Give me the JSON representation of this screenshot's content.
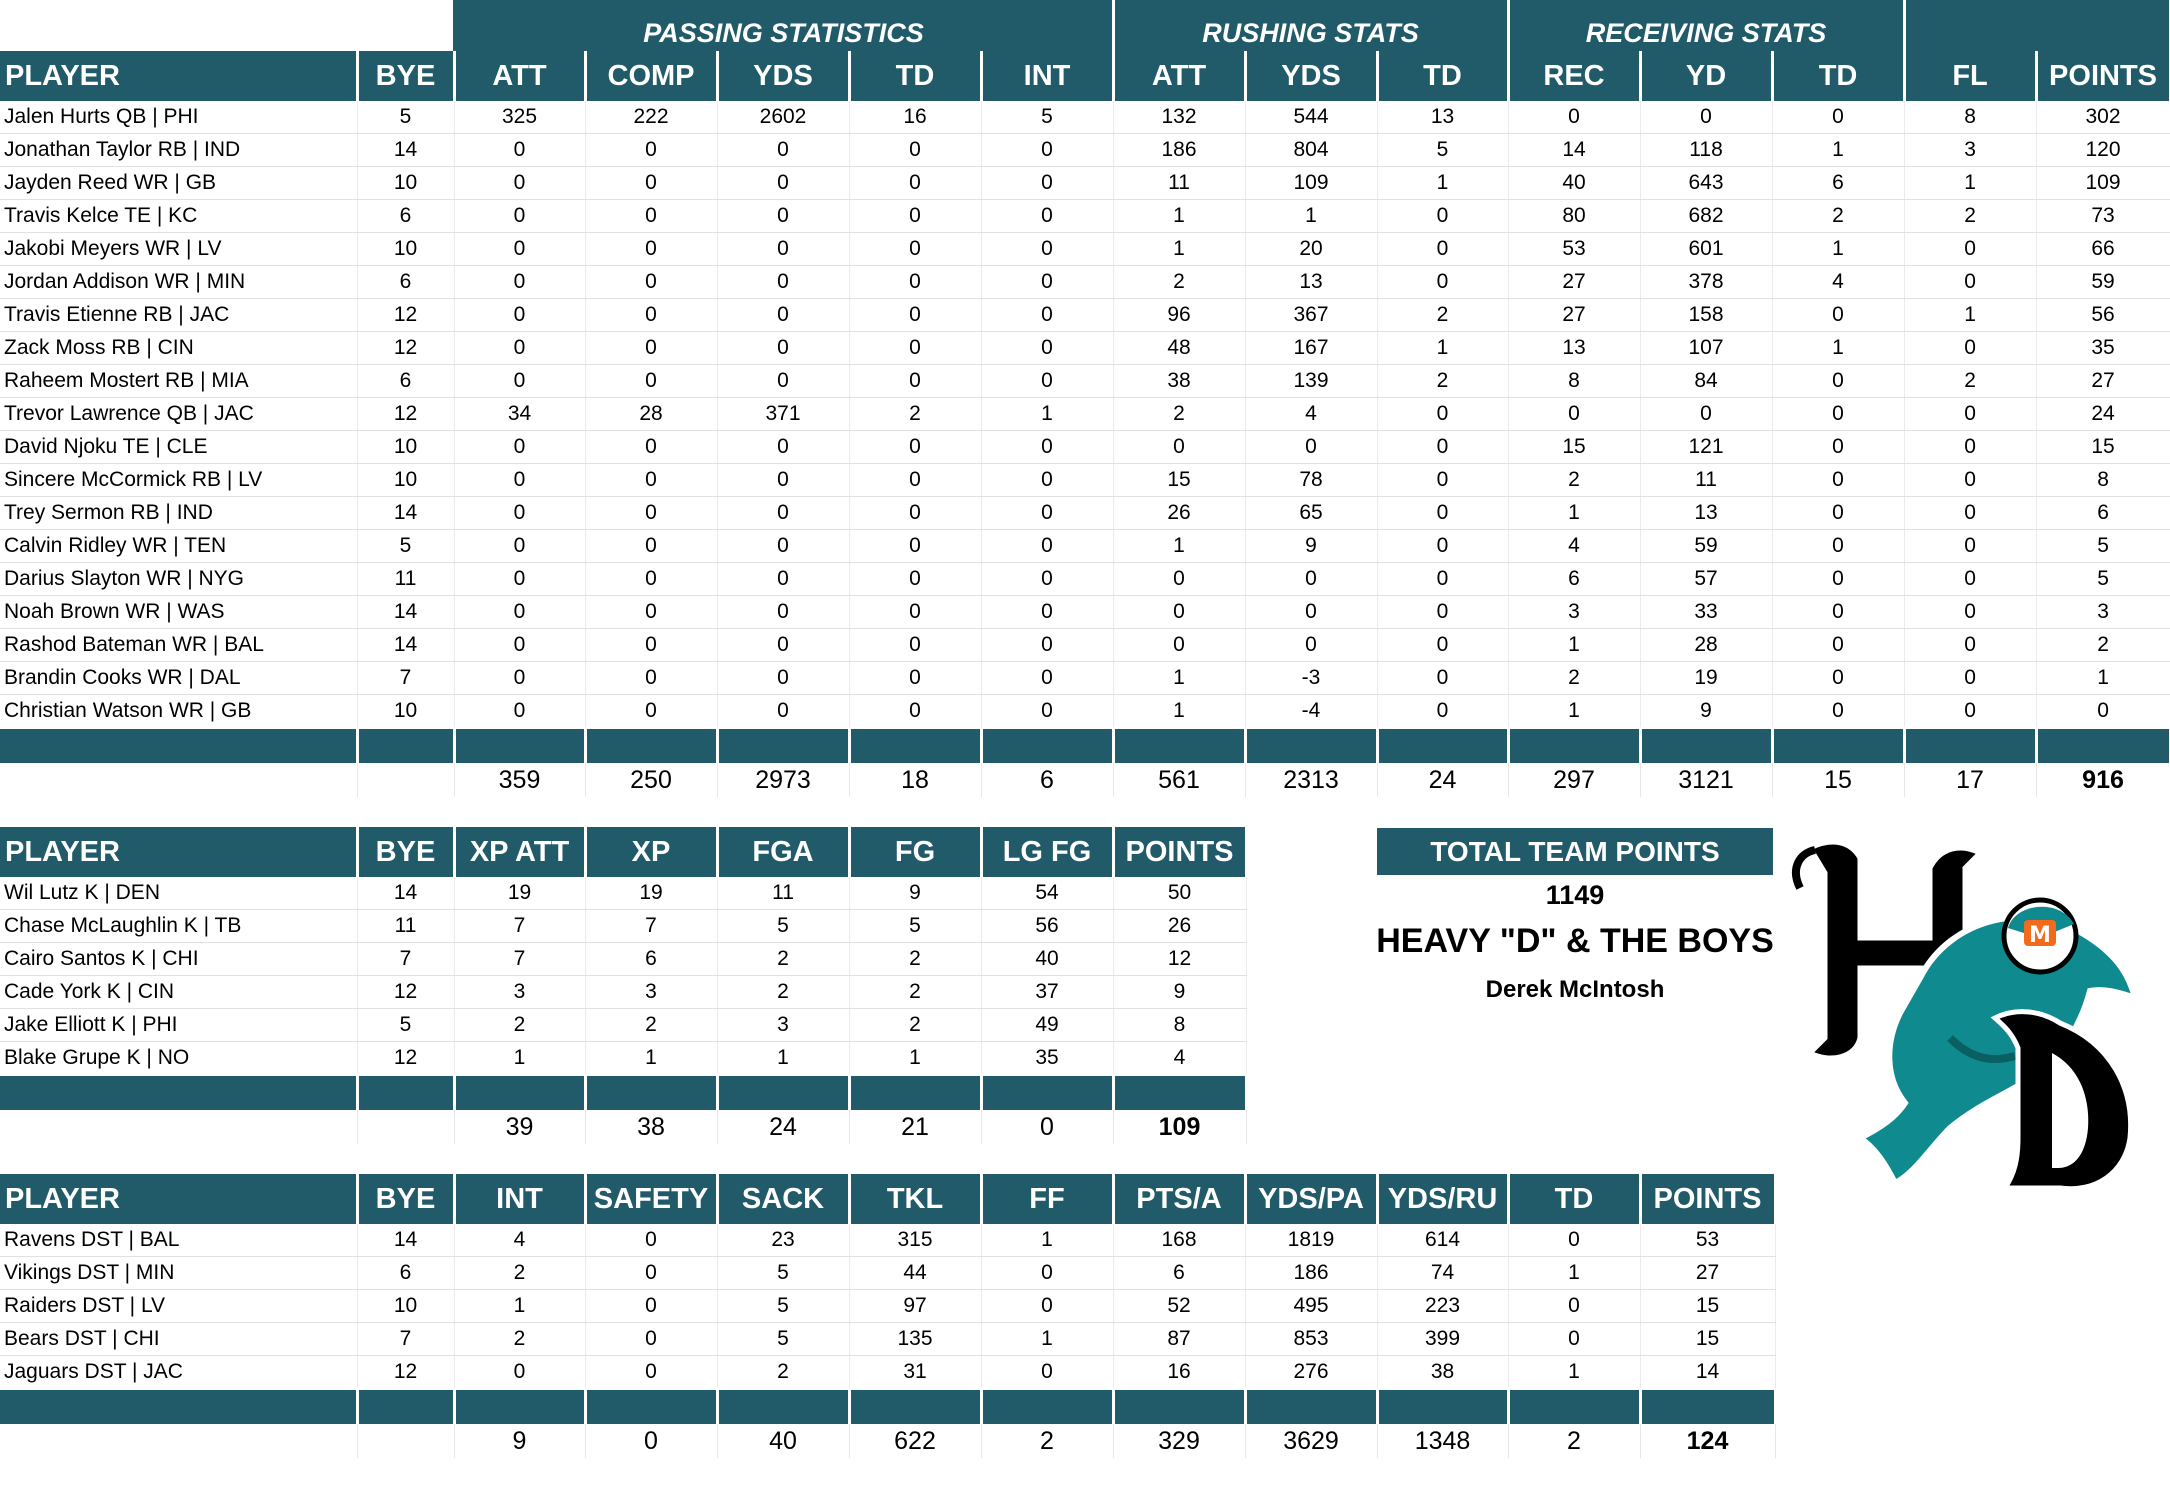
{
  "offense": {
    "groups": {
      "passing": "PASSING STATISTICS",
      "rushing": "RUSHING STATS",
      "receiving": "RECEIVING STATS"
    },
    "headers": [
      "PLAYER",
      "BYE",
      "ATT",
      "COMP",
      "YDS",
      "TD",
      "INT",
      "ATT",
      "YDS",
      "TD",
      "REC",
      "YD",
      "TD",
      "FL",
      "POINTS"
    ],
    "rows": [
      [
        "Jalen Hurts QB | PHI",
        "5",
        "325",
        "222",
        "2602",
        "16",
        "5",
        "132",
        "544",
        "13",
        "0",
        "0",
        "0",
        "8",
        "302"
      ],
      [
        "Jonathan Taylor RB | IND",
        "14",
        "0",
        "0",
        "0",
        "0",
        "0",
        "186",
        "804",
        "5",
        "14",
        "118",
        "1",
        "3",
        "120"
      ],
      [
        "Jayden Reed WR | GB",
        "10",
        "0",
        "0",
        "0",
        "0",
        "0",
        "11",
        "109",
        "1",
        "40",
        "643",
        "6",
        "1",
        "109"
      ],
      [
        "Travis Kelce TE | KC",
        "6",
        "0",
        "0",
        "0",
        "0",
        "0",
        "1",
        "1",
        "0",
        "80",
        "682",
        "2",
        "2",
        "73"
      ],
      [
        "Jakobi Meyers WR | LV",
        "10",
        "0",
        "0",
        "0",
        "0",
        "0",
        "1",
        "20",
        "0",
        "53",
        "601",
        "1",
        "0",
        "66"
      ],
      [
        "Jordan Addison WR | MIN",
        "6",
        "0",
        "0",
        "0",
        "0",
        "0",
        "2",
        "13",
        "0",
        "27",
        "378",
        "4",
        "0",
        "59"
      ],
      [
        "Travis Etienne RB | JAC",
        "12",
        "0",
        "0",
        "0",
        "0",
        "0",
        "96",
        "367",
        "2",
        "27",
        "158",
        "0",
        "1",
        "56"
      ],
      [
        "Zack Moss RB | CIN",
        "12",
        "0",
        "0",
        "0",
        "0",
        "0",
        "48",
        "167",
        "1",
        "13",
        "107",
        "1",
        "0",
        "35"
      ],
      [
        "Raheem Mostert RB | MIA",
        "6",
        "0",
        "0",
        "0",
        "0",
        "0",
        "38",
        "139",
        "2",
        "8",
        "84",
        "0",
        "2",
        "27"
      ],
      [
        "Trevor Lawrence QB | JAC",
        "12",
        "34",
        "28",
        "371",
        "2",
        "1",
        "2",
        "4",
        "0",
        "0",
        "0",
        "0",
        "0",
        "24"
      ],
      [
        "David Njoku TE | CLE",
        "10",
        "0",
        "0",
        "0",
        "0",
        "0",
        "0",
        "0",
        "0",
        "15",
        "121",
        "0",
        "0",
        "15"
      ],
      [
        "Sincere McCormick RB | LV",
        "10",
        "0",
        "0",
        "0",
        "0",
        "0",
        "15",
        "78",
        "0",
        "2",
        "11",
        "0",
        "0",
        "8"
      ],
      [
        "Trey Sermon RB | IND",
        "14",
        "0",
        "0",
        "0",
        "0",
        "0",
        "26",
        "65",
        "0",
        "1",
        "13",
        "0",
        "0",
        "6"
      ],
      [
        "Calvin Ridley WR | TEN",
        "5",
        "0",
        "0",
        "0",
        "0",
        "0",
        "1",
        "9",
        "0",
        "4",
        "59",
        "0",
        "0",
        "5"
      ],
      [
        "Darius Slayton WR | NYG",
        "11",
        "0",
        "0",
        "0",
        "0",
        "0",
        "0",
        "0",
        "0",
        "6",
        "57",
        "0",
        "0",
        "5"
      ],
      [
        "Noah Brown WR | WAS",
        "14",
        "0",
        "0",
        "0",
        "0",
        "0",
        "0",
        "0",
        "0",
        "3",
        "33",
        "0",
        "0",
        "3"
      ],
      [
        "Rashod Bateman WR | BAL",
        "14",
        "0",
        "0",
        "0",
        "0",
        "0",
        "0",
        "0",
        "0",
        "1",
        "28",
        "0",
        "0",
        "2"
      ],
      [
        "Brandin Cooks WR | DAL",
        "7",
        "0",
        "0",
        "0",
        "0",
        "0",
        "1",
        "-3",
        "0",
        "2",
        "19",
        "0",
        "0",
        "1"
      ],
      [
        "Christian Watson WR | GB",
        "10",
        "0",
        "0",
        "0",
        "0",
        "0",
        "1",
        "-4",
        "0",
        "1",
        "9",
        "0",
        "0",
        "0"
      ]
    ],
    "totals": [
      "",
      "",
      "359",
      "250",
      "2973",
      "18",
      "6",
      "561",
      "2313",
      "24",
      "297",
      "3121",
      "15",
      "17",
      "916"
    ]
  },
  "kickers": {
    "headers": [
      "PLAYER",
      "BYE",
      "XP ATT",
      "XP",
      "FGA",
      "FG",
      "LG FG",
      "POINTS"
    ],
    "rows": [
      [
        "Wil Lutz K | DEN",
        "14",
        "19",
        "19",
        "11",
        "9",
        "54",
        "50"
      ],
      [
        "Chase McLaughlin K | TB",
        "11",
        "7",
        "7",
        "5",
        "5",
        "56",
        "26"
      ],
      [
        "Cairo Santos K | CHI",
        "7",
        "7",
        "6",
        "2",
        "2",
        "40",
        "12"
      ],
      [
        "Cade York K | CIN",
        "12",
        "3",
        "3",
        "2",
        "2",
        "37",
        "9"
      ],
      [
        "Jake Elliott K | PHI",
        "5",
        "2",
        "2",
        "3",
        "2",
        "49",
        "8"
      ],
      [
        "Blake Grupe K | NO",
        "12",
        "1",
        "1",
        "1",
        "1",
        "35",
        "4"
      ]
    ],
    "totals": [
      "",
      "",
      "39",
      "38",
      "24",
      "21",
      "0",
      "109"
    ]
  },
  "defense": {
    "headers": [
      "PLAYER",
      "BYE",
      "INT",
      "SAFETY",
      "SACK",
      "TKL",
      "FF",
      "PTS/A",
      "YDS/PA",
      "YDS/RU",
      "TD",
      "POINTS"
    ],
    "rows": [
      [
        "Ravens DST | BAL",
        "14",
        "4",
        "0",
        "23",
        "315",
        "1",
        "168",
        "1819",
        "614",
        "0",
        "53"
      ],
      [
        "Vikings DST | MIN",
        "6",
        "2",
        "0",
        "5",
        "44",
        "0",
        "6",
        "186",
        "74",
        "1",
        "27"
      ],
      [
        "Raiders DST | LV",
        "10",
        "1",
        "0",
        "5",
        "97",
        "0",
        "52",
        "495",
        "223",
        "0",
        "15"
      ],
      [
        "Bears DST | CHI",
        "7",
        "2",
        "0",
        "5",
        "135",
        "1",
        "87",
        "853",
        "399",
        "0",
        "15"
      ],
      [
        "Jaguars DST | JAC",
        "12",
        "0",
        "0",
        "2",
        "31",
        "0",
        "16",
        "276",
        "38",
        "1",
        "14"
      ]
    ],
    "totals": [
      "",
      "",
      "9",
      "0",
      "40",
      "622",
      "2",
      "329",
      "3629",
      "1348",
      "2",
      "124"
    ]
  },
  "team": {
    "total_label": "TOTAL TEAM POINTS",
    "total_value": "1149",
    "name": "HEAVY \"D\" & THE BOYS",
    "owner": "Derek McIntosh"
  },
  "logo": {
    "letters": "HD",
    "helmet_letter": "M",
    "icon": "dolphin-logo-icon"
  },
  "colors": {
    "header": "#215a68",
    "logo_teal": "#0f8a8e",
    "logo_orange": "#f26a1b"
  }
}
